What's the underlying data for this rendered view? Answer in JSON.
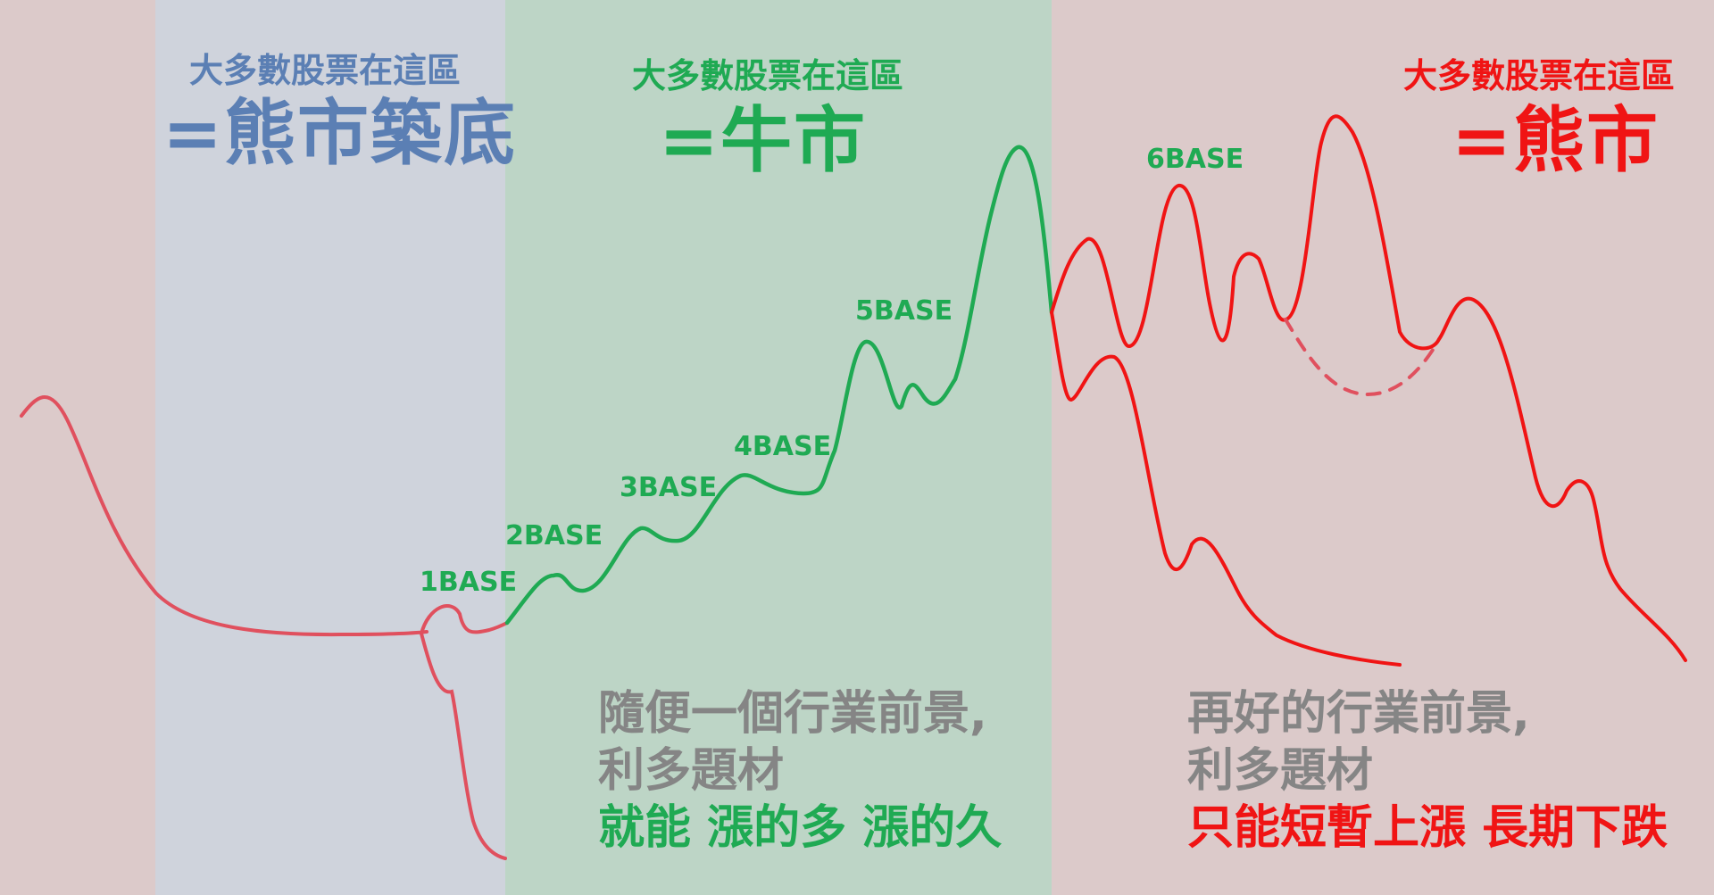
{
  "zones": {
    "bear_bottom": {
      "heading_small": "大多數股票在這區",
      "heading_big": "=熊市築底",
      "color": "#5b7fb4"
    },
    "bull": {
      "heading_small": "大多數股票在這區",
      "heading_big": "=牛市",
      "color": "#1faa53"
    },
    "bear": {
      "heading_small": "大多數股票在這區",
      "heading_big": "=熊市",
      "color": "#f01414"
    }
  },
  "base_labels": {
    "b1": "1BASE",
    "b2": "2BASE",
    "b3": "3BASE",
    "b4": "4BASE",
    "b5": "5BASE",
    "b6": "6BASE"
  },
  "notes": {
    "bull_line1": "隨便一個行業前景,",
    "bull_line2": "利多題材",
    "bull_line3": "就能 漲的多 漲的久",
    "bear_line1": "再好的行業前景,",
    "bear_line2": "利多題材",
    "bear_line3": "只能短暫上漲 長期下跌"
  },
  "colors": {
    "bear_bottom_zone": "#cfd3dc",
    "bull_zone": "#bdd5c6",
    "bear_zone": "#dccaca",
    "pink_curve": "#e0505e",
    "green_curve": "#1faa53",
    "red_curve": "#f01414",
    "grey_text": "#858585"
  }
}
